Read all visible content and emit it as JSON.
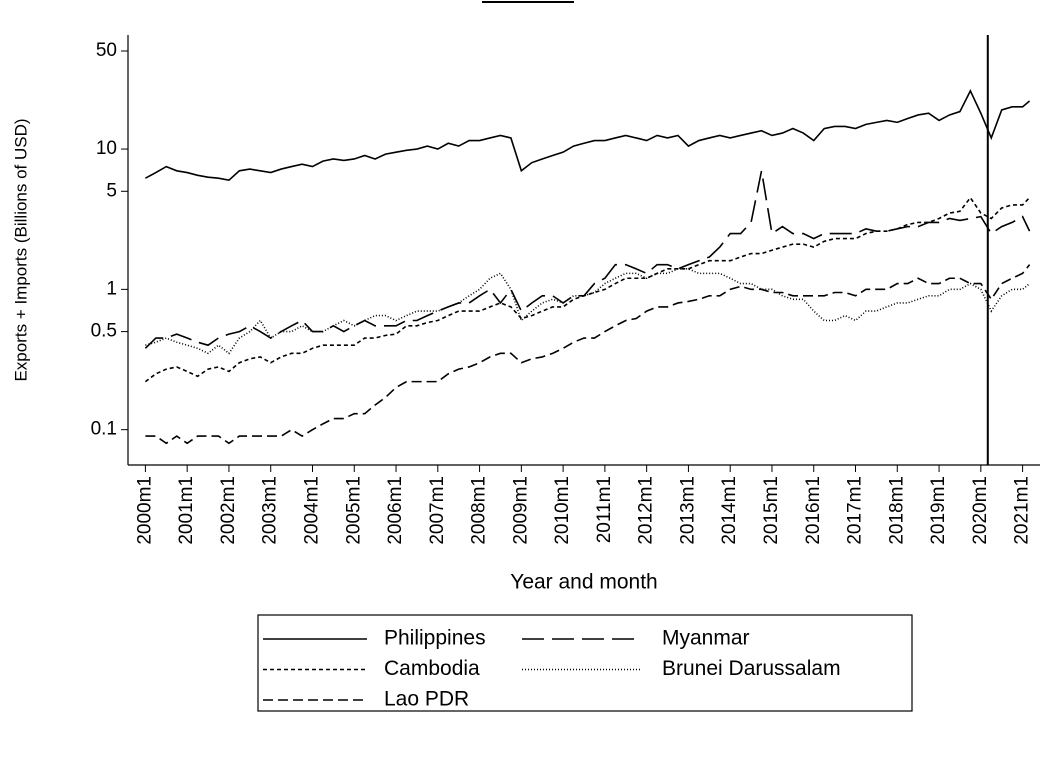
{
  "chart_data": {
    "type": "line",
    "y_label": "Exports + Imports (Billions of USD)",
    "x_label": "Year and month",
    "log_y": true,
    "ylim": [
      0.056,
      65
    ],
    "yticks": [
      0.1,
      0.5,
      1,
      5,
      10,
      50
    ],
    "xlim": [
      -5,
      257
    ],
    "xticks": [
      {
        "value": 0,
        "label": "2000m1"
      },
      {
        "value": 12,
        "label": "2001m1"
      },
      {
        "value": 24,
        "label": "2002m1"
      },
      {
        "value": 36,
        "label": "2003m1"
      },
      {
        "value": 48,
        "label": "2004m1"
      },
      {
        "value": 60,
        "label": "2005m1"
      },
      {
        "value": 72,
        "label": "2006m1"
      },
      {
        "value": 84,
        "label": "2007m1"
      },
      {
        "value": 96,
        "label": "2008m1"
      },
      {
        "value": 108,
        "label": "2009m1"
      },
      {
        "value": 120,
        "label": "2010m1"
      },
      {
        "value": 132,
        "label": "2011m1"
      },
      {
        "value": 144,
        "label": "2012m1"
      },
      {
        "value": 156,
        "label": "2013m1"
      },
      {
        "value": 168,
        "label": "2014m1"
      },
      {
        "value": 180,
        "label": "2015m1"
      },
      {
        "value": 192,
        "label": "2016m1"
      },
      {
        "value": 204,
        "label": "2017m1"
      },
      {
        "value": 216,
        "label": "2018m1"
      },
      {
        "value": 228,
        "label": "2019m1"
      },
      {
        "value": 240,
        "label": "2020m1"
      },
      {
        "value": 252,
        "label": "2021m1"
      }
    ],
    "xline": 242,
    "x": [
      0,
      3,
      6,
      9,
      12,
      15,
      18,
      21,
      24,
      27,
      30,
      33,
      36,
      39,
      42,
      45,
      48,
      51,
      54,
      57,
      60,
      63,
      66,
      69,
      72,
      75,
      78,
      81,
      84,
      87,
      90,
      93,
      96,
      99,
      102,
      105,
      108,
      111,
      114,
      117,
      120,
      123,
      126,
      129,
      132,
      135,
      138,
      141,
      144,
      147,
      150,
      153,
      156,
      159,
      162,
      165,
      168,
      171,
      174,
      177,
      180,
      183,
      186,
      189,
      192,
      195,
      198,
      201,
      204,
      207,
      210,
      213,
      216,
      219,
      222,
      225,
      228,
      231,
      234,
      237,
      240,
      243,
      246,
      249,
      252,
      254
    ],
    "series": [
      {
        "name": "Philippines",
        "color": "#000000",
        "dash": "none",
        "values": [
          6.2,
          6.8,
          7.5,
          7.0,
          6.8,
          6.5,
          6.3,
          6.2,
          6.0,
          7.0,
          7.2,
          7.0,
          6.8,
          7.2,
          7.5,
          7.8,
          7.5,
          8.2,
          8.5,
          8.3,
          8.5,
          9.0,
          8.5,
          9.2,
          9.5,
          9.8,
          10.0,
          10.5,
          10.0,
          11.0,
          10.5,
          11.5,
          11.5,
          12.0,
          12.5,
          12.0,
          7.0,
          8.0,
          8.5,
          9.0,
          9.5,
          10.5,
          11.0,
          11.5,
          11.5,
          12.0,
          12.5,
          12.0,
          11.5,
          12.5,
          12.0,
          12.5,
          10.5,
          11.5,
          12.0,
          12.5,
          12.0,
          12.5,
          13.0,
          13.5,
          12.5,
          13.0,
          14.0,
          13.0,
          11.5,
          14.0,
          14.5,
          14.5,
          14.0,
          15.0,
          15.5,
          16.0,
          15.5,
          16.5,
          17.5,
          18.0,
          16.0,
          17.5,
          18.5,
          26.0,
          18.0,
          12.0,
          19.0,
          20.0,
          20.0,
          22.0
        ]
      },
      {
        "name": "Myanmar",
        "color": "#000000",
        "dash": "22,8",
        "values": [
          0.38,
          0.45,
          0.45,
          0.48,
          0.45,
          0.42,
          0.4,
          0.45,
          0.48,
          0.5,
          0.55,
          0.5,
          0.45,
          0.5,
          0.55,
          0.6,
          0.5,
          0.5,
          0.55,
          0.5,
          0.55,
          0.6,
          0.55,
          0.55,
          0.55,
          0.6,
          0.6,
          0.65,
          0.7,
          0.75,
          0.8,
          0.8,
          0.9,
          1.0,
          0.8,
          1.0,
          0.7,
          0.8,
          0.9,
          0.9,
          0.8,
          0.9,
          0.9,
          1.1,
          1.2,
          1.5,
          1.5,
          1.4,
          1.3,
          1.5,
          1.5,
          1.4,
          1.5,
          1.6,
          1.7,
          2.0,
          2.5,
          2.5,
          3.0,
          7.0,
          2.5,
          2.8,
          2.5,
          2.5,
          2.3,
          2.5,
          2.5,
          2.5,
          2.5,
          2.7,
          2.6,
          2.6,
          2.7,
          2.8,
          2.8,
          3.0,
          3.0,
          3.2,
          3.1,
          3.2,
          3.3,
          2.5,
          2.8,
          3.0,
          3.3,
          2.6
        ]
      },
      {
        "name": "Cambodia",
        "color": "#000000",
        "dash": "4,3",
        "values": [
          0.22,
          0.25,
          0.27,
          0.28,
          0.26,
          0.24,
          0.27,
          0.28,
          0.26,
          0.3,
          0.32,
          0.33,
          0.3,
          0.33,
          0.35,
          0.35,
          0.38,
          0.4,
          0.4,
          0.4,
          0.4,
          0.45,
          0.45,
          0.47,
          0.48,
          0.55,
          0.55,
          0.58,
          0.6,
          0.65,
          0.7,
          0.7,
          0.7,
          0.75,
          0.8,
          0.75,
          0.62,
          0.65,
          0.7,
          0.75,
          0.75,
          0.85,
          0.9,
          0.95,
          1.0,
          1.1,
          1.2,
          1.2,
          1.2,
          1.3,
          1.4,
          1.4,
          1.4,
          1.5,
          1.6,
          1.6,
          1.6,
          1.7,
          1.8,
          1.8,
          1.9,
          2.0,
          2.1,
          2.1,
          2.0,
          2.2,
          2.3,
          2.3,
          2.3,
          2.5,
          2.6,
          2.6,
          2.7,
          2.9,
          3.0,
          3.0,
          3.2,
          3.5,
          3.6,
          4.5,
          3.5,
          3.2,
          3.8,
          4.0,
          4.0,
          4.5
        ]
      },
      {
        "name": "Brunei Darussalam",
        "color": "#000000",
        "dash": "1,2",
        "values": [
          0.4,
          0.42,
          0.45,
          0.42,
          0.4,
          0.38,
          0.35,
          0.4,
          0.35,
          0.45,
          0.5,
          0.6,
          0.45,
          0.5,
          0.5,
          0.55,
          0.5,
          0.5,
          0.55,
          0.6,
          0.55,
          0.6,
          0.65,
          0.65,
          0.6,
          0.65,
          0.7,
          0.7,
          0.7,
          0.75,
          0.8,
          0.9,
          1.0,
          1.2,
          1.3,
          1.0,
          0.6,
          0.7,
          0.8,
          0.85,
          0.8,
          0.9,
          0.9,
          0.95,
          1.1,
          1.2,
          1.3,
          1.3,
          1.2,
          1.3,
          1.3,
          1.4,
          1.4,
          1.3,
          1.3,
          1.3,
          1.2,
          1.1,
          1.1,
          1.0,
          1.0,
          0.9,
          0.85,
          0.85,
          0.7,
          0.6,
          0.6,
          0.65,
          0.6,
          0.7,
          0.7,
          0.75,
          0.8,
          0.8,
          0.85,
          0.9,
          0.9,
          1.0,
          1.0,
          1.1,
          1.0,
          0.7,
          0.9,
          1.0,
          1.0,
          1.1
        ]
      },
      {
        "name": "Lao PDR",
        "color": "#000000",
        "dash": "10,5",
        "values": [
          0.09,
          0.09,
          0.08,
          0.09,
          0.08,
          0.09,
          0.09,
          0.09,
          0.08,
          0.09,
          0.09,
          0.09,
          0.09,
          0.09,
          0.1,
          0.09,
          0.1,
          0.11,
          0.12,
          0.12,
          0.13,
          0.13,
          0.15,
          0.17,
          0.2,
          0.22,
          0.22,
          0.22,
          0.22,
          0.25,
          0.27,
          0.28,
          0.3,
          0.33,
          0.35,
          0.35,
          0.3,
          0.32,
          0.33,
          0.35,
          0.38,
          0.42,
          0.45,
          0.45,
          0.5,
          0.55,
          0.6,
          0.62,
          0.7,
          0.75,
          0.75,
          0.8,
          0.82,
          0.85,
          0.9,
          0.9,
          1.0,
          1.05,
          1.0,
          1.0,
          0.95,
          0.95,
          0.9,
          0.9,
          0.9,
          0.9,
          0.95,
          0.95,
          0.9,
          1.0,
          1.0,
          1.0,
          1.1,
          1.1,
          1.2,
          1.1,
          1.1,
          1.2,
          1.2,
          1.1,
          1.1,
          0.85,
          1.1,
          1.2,
          1.3,
          1.5
        ]
      }
    ]
  }
}
